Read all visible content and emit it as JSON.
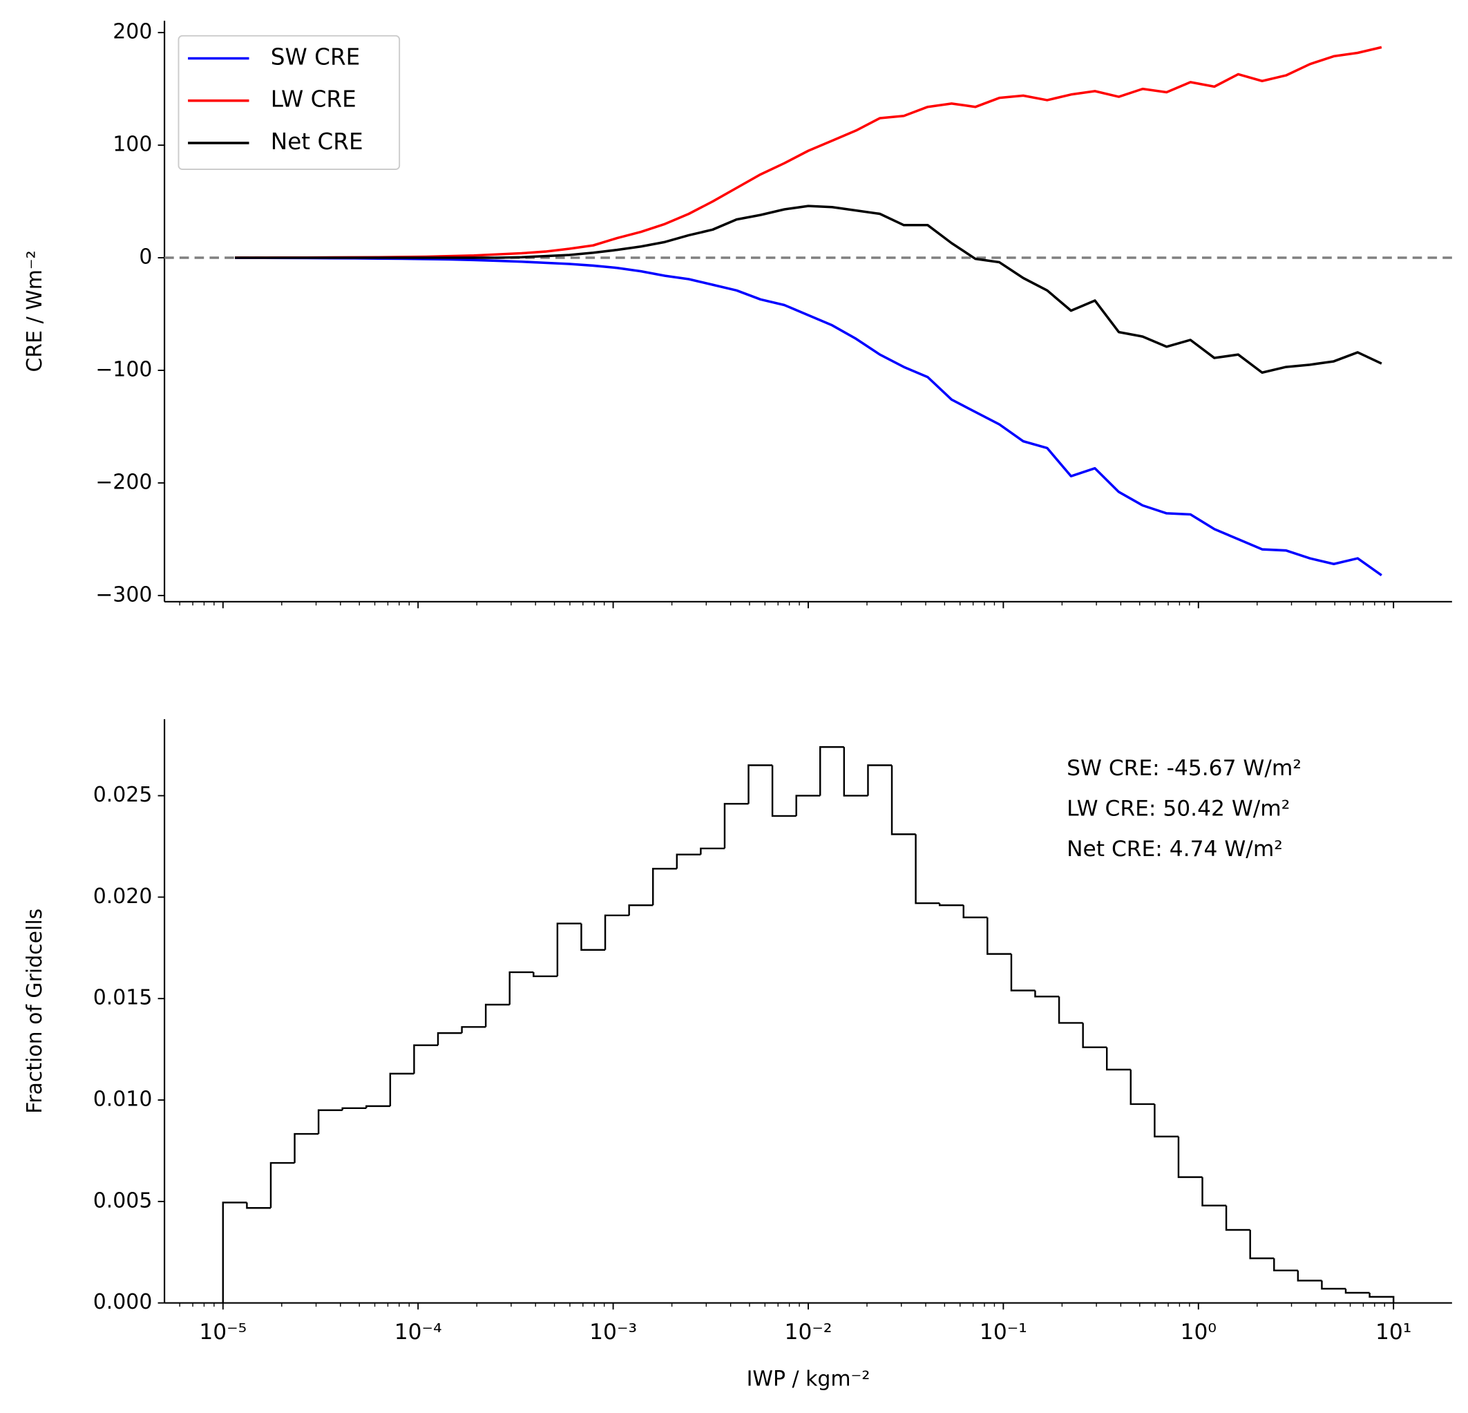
{
  "chart_data": [
    {
      "type": "line",
      "log_x": true,
      "legend": "upper left",
      "ylabel": "CRE / Wm⁻²",
      "x": [
        1.151e-05,
        1.526e-05,
        2.024e-05,
        2.683e-05,
        3.556e-05,
        4.715e-05,
        6.251e-05,
        8.286e-05,
        0.0001099,
        0.0001456,
        0.0001931,
        0.000256,
        0.0003393,
        0.0004498,
        0.0005964,
        0.0007906,
        0.001048,
        0.001389,
        0.001842,
        0.002442,
        0.003237,
        0.004292,
        0.00569,
        0.007543,
        0.01,
        0.01326,
        0.01758,
        0.0233,
        0.03089,
        0.04095,
        0.05429,
        0.07197,
        0.09541,
        0.1265,
        0.1677,
        0.2223,
        0.2947,
        0.3907,
        0.5179,
        0.6866,
        0.9103,
        1.207,
        1.6,
        2.121,
        2.812,
        3.728,
        4.942,
        6.551,
        8.685
      ],
      "series": [
        {
          "name": "SW CRE",
          "color": "#0000ff",
          "values": [
            -0.1,
            -0.1,
            -0.2,
            -0.3,
            -0.4,
            -0.5,
            -0.7,
            -0.9,
            -1.2,
            -1.5,
            -2,
            -2.7,
            -3.5,
            -4.5,
            -5.5,
            -7,
            -9,
            -12,
            -16,
            -19,
            -24,
            -29,
            -37,
            -42,
            -51,
            -60,
            -72,
            -86,
            -97,
            -106,
            -126,
            -137,
            -148,
            -163,
            -169,
            -194,
            -187,
            -208,
            -220,
            -227,
            -228,
            -241,
            -250,
            -259,
            -260,
            -267,
            -272,
            -267,
            -282
          ]
        },
        {
          "name": "LW CRE",
          "color": "#ff0000",
          "values": [
            0.1,
            0.1,
            0.2,
            0.2,
            0.3,
            0.4,
            0.5,
            0.7,
            0.9,
            1.5,
            2,
            3,
            4,
            5.5,
            8,
            11,
            17.5,
            23,
            30,
            39,
            50,
            62,
            74,
            84,
            95,
            104,
            113,
            124,
            126,
            134,
            137,
            134,
            142,
            144,
            140,
            145,
            148,
            143,
            150,
            147,
            156,
            152,
            163,
            157,
            162,
            172,
            179,
            182,
            187
          ]
        },
        {
          "name": "Net CRE",
          "color": "#000000",
          "values": [
            0,
            0,
            0,
            0,
            0,
            0,
            0,
            0,
            0,
            0,
            0,
            0,
            0.5,
            1.5,
            2.5,
            4.5,
            7,
            10,
            14,
            20,
            25,
            34,
            38,
            43,
            46,
            45,
            42,
            39,
            29,
            29,
            13,
            -1,
            -4,
            -18,
            -29,
            -47,
            -38,
            -66,
            -70,
            -79,
            -73,
            -89,
            -86,
            -102,
            -97,
            -95,
            -92,
            -84,
            -94
          ]
        }
      ],
      "hline": 0,
      "hline_color": "#808080",
      "xlim": [
        5.012e-06,
        19.95
      ],
      "xticks": [
        1e-05,
        0.0001,
        0.001,
        0.01,
        0.1,
        1,
        10
      ],
      "ylim": [
        -305.5,
        210.5
      ],
      "yticks": [
        {
          "value": -300,
          "label": "−300"
        },
        {
          "value": -200,
          "label": "−200"
        },
        {
          "value": -100,
          "label": "−100"
        },
        0,
        100,
        200
      ]
    },
    {
      "type": "histogram",
      "log_x": true,
      "color": "#000000",
      "ylabel": "Fraction of Gridcells",
      "xlabel": "IWP / kgm⁻²",
      "bins": [
        1e-05,
        1.326e-05,
        1.758e-05,
        2.33e-05,
        3.089e-05,
        4.095e-05,
        5.429e-05,
        7.197e-05,
        9.541e-05,
        0.0001265,
        0.0001677,
        0.0002223,
        0.0002947,
        0.0003907,
        0.0005179,
        0.0006866,
        0.0009103,
        0.001207,
        0.0016,
        0.002121,
        0.002812,
        0.003728,
        0.004942,
        0.006551,
        0.008685,
        0.01151,
        0.01526,
        0.02024,
        0.02683,
        0.03556,
        0.04715,
        0.06251,
        0.08286,
        0.1099,
        0.1456,
        0.1931,
        0.256,
        0.3393,
        0.4498,
        0.5964,
        0.7906,
        1.048,
        1.389,
        1.842,
        2.442,
        3.237,
        4.292,
        5.69,
        7.543,
        10
      ],
      "values": [
        0.00495,
        0.00468,
        0.0069,
        0.00833,
        0.0095,
        0.0096,
        0.0097,
        0.0113,
        0.0127,
        0.0133,
        0.0136,
        0.0147,
        0.0163,
        0.0161,
        0.0187,
        0.0174,
        0.0191,
        0.0196,
        0.0214,
        0.0221,
        0.0224,
        0.0246,
        0.0265,
        0.024,
        0.025,
        0.0274,
        0.025,
        0.0265,
        0.0231,
        0.0197,
        0.0196,
        0.019,
        0.0172,
        0.0154,
        0.0151,
        0.0138,
        0.0126,
        0.0115,
        0.0098,
        0.0082,
        0.0062,
        0.0048,
        0.0036,
        0.0022,
        0.0016,
        0.0011,
        0.0007,
        0.0005,
        0.0003
      ],
      "xlim": [
        5.012e-06,
        19.95
      ],
      "xticks": [
        {
          "value": 1e-05,
          "label": "10⁻⁵"
        },
        {
          "value": 0.0001,
          "label": "10⁻⁴"
        },
        {
          "value": 0.001,
          "label": "10⁻³"
        },
        {
          "value": 0.01,
          "label": "10⁻²"
        },
        {
          "value": 0.1,
          "label": "10⁻¹"
        },
        {
          "value": 1,
          "label": "10⁰"
        },
        {
          "value": 10,
          "label": "10¹"
        }
      ],
      "ylim": [
        0,
        0.02877
      ],
      "yticks": [
        {
          "value": 0,
          "label": "0.000"
        },
        {
          "value": 0.005,
          "label": "0.005"
        },
        {
          "value": 0.01,
          "label": "0.010"
        },
        {
          "value": 0.015,
          "label": "0.015"
        },
        {
          "value": 0.02,
          "label": "0.020"
        },
        {
          "value": 0.025,
          "label": "0.025"
        }
      ],
      "annotations": [
        {
          "text": "SW CRE: -45.67 W/m²",
          "color": "#0000ff"
        },
        {
          "text": "LW CRE: 50.42 W/m²",
          "color": "#ff0000"
        },
        {
          "text": "Net CRE: 4.74 W/m²",
          "color": "#000000"
        }
      ]
    }
  ]
}
